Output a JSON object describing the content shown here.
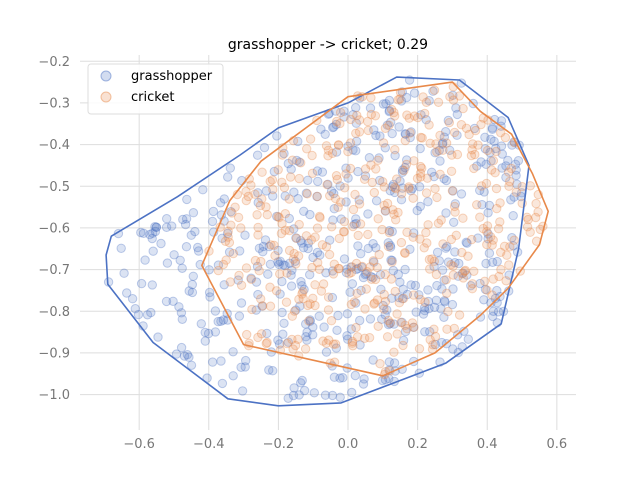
{
  "chart_data": {
    "type": "scatter",
    "title": "grasshopper -> cricket; 0.29",
    "xlabel": "",
    "ylabel": "",
    "xlim": [
      -0.77,
      0.655
    ],
    "ylim": [
      -1.085,
      -0.185
    ],
    "xticks": [
      -0.6,
      -0.4,
      -0.2,
      0.0,
      0.2,
      0.4,
      0.6
    ],
    "xtick_labels": [
      "−0.6",
      "−0.4",
      "−0.2",
      "0.0",
      "0.2",
      "0.4",
      "0.6"
    ],
    "yticks": [
      -0.2,
      -0.3,
      -0.4,
      -0.5,
      -0.6,
      -0.7,
      -0.8,
      -0.9,
      -1.0
    ],
    "ytick_labels": [
      "−0.2",
      "−0.3",
      "−0.4",
      "−0.5",
      "−0.6",
      "−0.7",
      "−0.8",
      "−0.9",
      "−1.0"
    ],
    "grid": true,
    "legend_position": "top-left",
    "series": [
      {
        "name": "grasshopper",
        "color": "#4c72c4",
        "n_points": 520,
        "hull": [
          [
            -0.695,
            -0.665
          ],
          [
            -0.69,
            -0.735
          ],
          [
            -0.56,
            -0.875
          ],
          [
            -0.345,
            -1.01
          ],
          [
            -0.2,
            -1.027
          ],
          [
            -0.02,
            -1.02
          ],
          [
            0.28,
            -0.925
          ],
          [
            0.44,
            -0.83
          ],
          [
            0.49,
            -0.65
          ],
          [
            0.52,
            -0.45
          ],
          [
            0.46,
            -0.335
          ],
          [
            0.32,
            -0.245
          ],
          [
            0.14,
            -0.238
          ],
          [
            0.0,
            -0.3
          ],
          [
            -0.2,
            -0.36
          ],
          [
            -0.31,
            -0.425
          ],
          [
            -0.49,
            -0.525
          ],
          [
            -0.68,
            -0.62
          ]
        ]
      },
      {
        "name": "cricket",
        "color": "#e8894a",
        "n_points": 440,
        "hull": [
          [
            -0.42,
            -0.69
          ],
          [
            -0.3,
            -0.88
          ],
          [
            0.1,
            -0.955
          ],
          [
            0.25,
            -0.9
          ],
          [
            0.38,
            -0.81
          ],
          [
            0.46,
            -0.745
          ],
          [
            0.55,
            -0.64
          ],
          [
            0.575,
            -0.56
          ],
          [
            0.53,
            -0.47
          ],
          [
            0.47,
            -0.375
          ],
          [
            0.38,
            -0.32
          ],
          [
            0.3,
            -0.25
          ],
          [
            0.0,
            -0.285
          ],
          [
            -0.25,
            -0.44
          ],
          [
            -0.34,
            -0.535
          ]
        ]
      }
    ]
  }
}
